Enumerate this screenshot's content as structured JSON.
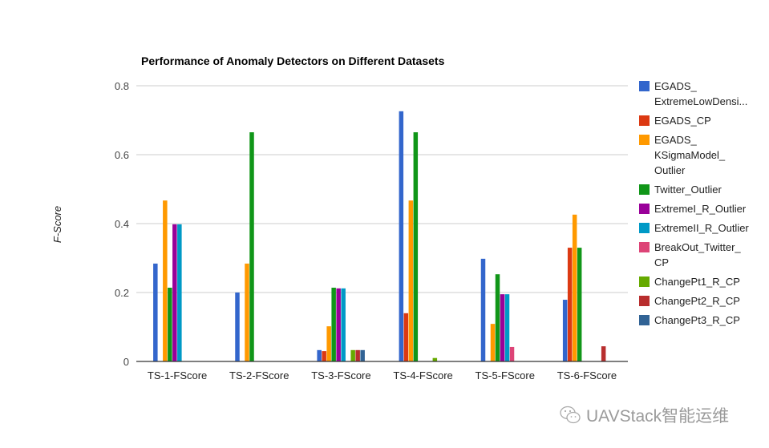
{
  "chart_data": {
    "type": "bar",
    "title": "Performance of Anomaly Detectors on Different Datasets",
    "xlabel": "",
    "ylabel": "F-Score",
    "ylim": [
      0,
      0.8
    ],
    "yticks": [
      "0",
      "0.2",
      "0.4",
      "0.6",
      "0.8"
    ],
    "ytick_values": [
      0,
      0.2,
      0.4,
      0.6,
      0.8
    ],
    "grid": true,
    "legend_position": "right",
    "categories": [
      "TS-1-FScore",
      "TS-2-FScore",
      "TS-3-FScore",
      "TS-4-FScore",
      "TS-5-FScore",
      "TS-6-FScore"
    ],
    "series": [
      {
        "name": "EGADS_ExtremeLowDensi...",
        "legend_lines": [
          "EGADS_",
          "ExtremeLowDensi..."
        ],
        "color": "#3366cc",
        "values": [
          0.284,
          0.2,
          0.033,
          0.726,
          0.298,
          0.179
        ]
      },
      {
        "name": "EGADS_CP",
        "legend_lines": [
          "EGADS_CP"
        ],
        "color": "#dc3912",
        "values": [
          0,
          0,
          0.03,
          0.14,
          0,
          0.33
        ]
      },
      {
        "name": "EGADS_KSigmaModel_Outlier",
        "legend_lines": [
          "EGADS_",
          "KSigmaModel_",
          "Outlier"
        ],
        "color": "#ff9900",
        "values": [
          0.467,
          0.284,
          0.102,
          0.467,
          0.109,
          0.426
        ]
      },
      {
        "name": "Twitter_Outlier",
        "legend_lines": [
          "Twitter_Outlier"
        ],
        "color": "#109618",
        "values": [
          0.214,
          0.665,
          0.214,
          0.665,
          0.253,
          0.33
        ]
      },
      {
        "name": "ExtremeI_R_Outlier",
        "legend_lines": [
          "ExtremeI_R_Outlier"
        ],
        "color": "#990099",
        "values": [
          0.398,
          0,
          0.212,
          0,
          0.195,
          0
        ]
      },
      {
        "name": "ExtremeII_R_Outlier",
        "legend_lines": [
          "ExtremeII_R_Outlier"
        ],
        "color": "#0099c6",
        "values": [
          0.398,
          0,
          0.212,
          0,
          0.195,
          0
        ]
      },
      {
        "name": "BreakOut_Twitter_CP",
        "legend_lines": [
          "BreakOut_Twitter_",
          "CP"
        ],
        "color": "#dd4477",
        "values": [
          0,
          0,
          0,
          0,
          0.042,
          0
        ]
      },
      {
        "name": "ChangePt1_R_CP",
        "legend_lines": [
          "ChangePt1_R_CP"
        ],
        "color": "#66aa00",
        "values": [
          0,
          0,
          0.033,
          0.01,
          0,
          0
        ]
      },
      {
        "name": "ChangePt2_R_CP",
        "legend_lines": [
          "ChangePt2_R_CP"
        ],
        "color": "#b82e2e",
        "values": [
          0,
          0,
          0.033,
          0,
          0,
          0.044
        ]
      },
      {
        "name": "ChangePt3_R_CP",
        "legend_lines": [
          "ChangePt3_R_CP"
        ],
        "color": "#316395",
        "values": [
          0,
          0,
          0.033,
          0,
          0,
          0
        ]
      }
    ]
  },
  "watermark": {
    "icon": "wechat-icon",
    "text": "UAVStack智能运维"
  }
}
